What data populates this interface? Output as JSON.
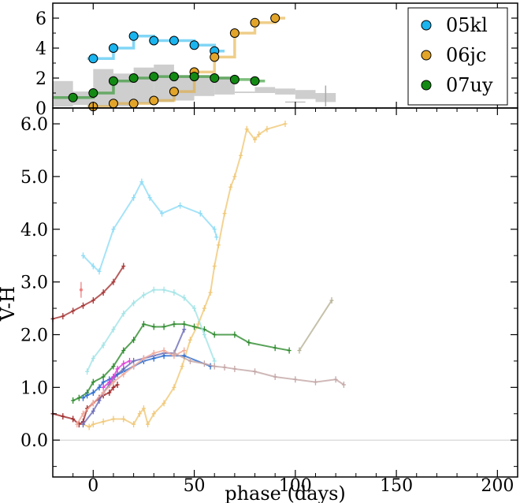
{
  "chart_data": [
    {
      "panel": "top",
      "type": "line",
      "title": "",
      "xlabel": "",
      "ylabel": "",
      "xlim": [
        -20,
        210
      ],
      "ylim": [
        0,
        7
      ],
      "yticks": [
        0,
        2,
        4,
        6
      ],
      "ytick_labels": [
        "0",
        "2",
        "4",
        "6"
      ],
      "legend": {
        "placement": "top-right",
        "entries": [
          {
            "label": "05kl",
            "color": "#1ab4ef"
          },
          {
            "label": "06jc",
            "color": "#e2a52a"
          },
          {
            "label": "07uy",
            "color": "#138a13"
          }
        ]
      },
      "band": {
        "name": "range",
        "color": "#bdbdbd",
        "x": [
          -15,
          -5,
          5,
          15,
          25,
          35,
          45,
          55,
          65,
          75,
          85,
          95,
          105,
          115
        ],
        "low": [
          0.1,
          0.2,
          0.1,
          0.1,
          0.3,
          0.4,
          0.5,
          0.8,
          0.9,
          1.0,
          1.0,
          0.9,
          0.6,
          0.4
        ],
        "high": [
          1.8,
          1.1,
          2.6,
          2.3,
          2.7,
          2.9,
          2.2,
          2.2,
          2.1,
          1.1,
          1.4,
          1.3,
          1.2,
          1.0
        ]
      },
      "series": [
        {
          "name": "05kl",
          "color": "#1ab4ef",
          "step_x": [
            -3,
            0,
            10,
            20,
            30,
            40,
            50,
            60,
            65
          ],
          "step_y": [
            3.3,
            3.3,
            4.0,
            4.8,
            4.5,
            4.5,
            4.2,
            3.8,
            3.8
          ],
          "marker_x": [
            0,
            10,
            20,
            30,
            40,
            50,
            60
          ],
          "marker_y": [
            3.3,
            4.0,
            4.8,
            4.5,
            4.5,
            4.2,
            3.8
          ]
        },
        {
          "name": "06jc",
          "color": "#e2a52a",
          "step_x": [
            -3,
            0,
            10,
            20,
            30,
            40,
            50,
            60,
            70,
            80,
            90,
            95
          ],
          "step_y": [
            0.1,
            0.1,
            0.3,
            0.3,
            0.5,
            1.1,
            2.4,
            3.4,
            5.0,
            5.7,
            6.0,
            6.0
          ],
          "marker_x": [
            0,
            10,
            20,
            30,
            40,
            50,
            60,
            70,
            80,
            90
          ],
          "marker_y": [
            0.1,
            0.3,
            0.3,
            0.5,
            1.1,
            2.4,
            3.4,
            5.0,
            5.7,
            6.0
          ]
        },
        {
          "name": "07uy",
          "color": "#138a13",
          "step_x": [
            -20,
            -10,
            0,
            10,
            20,
            30,
            40,
            50,
            60,
            70,
            80,
            85
          ],
          "step_y": [
            0.7,
            0.7,
            1.0,
            1.8,
            2.0,
            2.1,
            2.1,
            2.1,
            2.0,
            1.9,
            1.8,
            1.8
          ],
          "marker_x": [
            -10,
            0,
            10,
            20,
            30,
            40,
            50,
            60,
            70,
            80
          ],
          "marker_y": [
            0.7,
            1.0,
            1.8,
            2.0,
            2.1,
            2.1,
            2.1,
            2.0,
            1.9,
            1.8
          ]
        }
      ]
    },
    {
      "panel": "bottom",
      "type": "line",
      "title": "",
      "xlabel": "phase (days)",
      "ylabel": "V-H",
      "xlim": [
        -20,
        210
      ],
      "ylim": [
        -0.7,
        6.3
      ],
      "xticks": [
        0,
        50,
        100,
        150,
        200
      ],
      "xtick_labels": [
        "0",
        "50",
        "100",
        "150",
        "200"
      ],
      "yticks": [
        0,
        1,
        2,
        3,
        4,
        5,
        6
      ],
      "ytick_labels": [
        "0.0",
        "1.0",
        "2.0",
        "3.0",
        "4.0",
        "5.0",
        "6.0"
      ],
      "zero_line": true,
      "series": [
        {
          "name": "05kl",
          "color": "#8edcf6",
          "x": [
            -5,
            0,
            3,
            10,
            20,
            24,
            28,
            34,
            43,
            53,
            60,
            61
          ],
          "y": [
            3.5,
            3.3,
            3.2,
            4.0,
            4.6,
            4.9,
            4.6,
            4.3,
            4.45,
            4.3,
            4.0,
            3.85
          ]
        },
        {
          "name": "06jc",
          "color": "#f0c878",
          "x": [
            -5,
            -2,
            0,
            5,
            10,
            15,
            20,
            23,
            25,
            27,
            30,
            35,
            40,
            44,
            48,
            52,
            55,
            58,
            60,
            62,
            65,
            68,
            70,
            73,
            76,
            80,
            82,
            86,
            95
          ],
          "y": [
            0.3,
            0.25,
            0.3,
            0.35,
            0.4,
            0.4,
            0.3,
            0.5,
            0.6,
            0.3,
            0.5,
            0.7,
            1.0,
            1.4,
            1.9,
            2.2,
            2.5,
            2.8,
            3.3,
            3.7,
            4.3,
            4.8,
            5.0,
            5.4,
            5.9,
            5.7,
            5.8,
            5.9,
            6.0
          ]
        },
        {
          "name": "07uy",
          "color": "#2e8b2e",
          "x": [
            -10,
            -7,
            -3,
            0,
            5,
            10,
            15,
            20,
            25,
            30,
            35,
            40,
            45,
            50,
            55,
            60,
            70,
            77,
            90,
            97
          ],
          "y": [
            0.75,
            0.8,
            0.9,
            1.1,
            1.2,
            1.4,
            1.7,
            1.9,
            2.2,
            2.15,
            2.15,
            2.2,
            2.2,
            2.15,
            2.1,
            2.0,
            2.0,
            1.85,
            1.75,
            1.7
          ]
        },
        {
          "name": "teal",
          "color": "#a3e4e6",
          "x": [
            -3,
            0,
            5,
            10,
            15,
            20,
            25,
            30,
            35,
            40,
            45,
            50,
            55,
            60
          ],
          "y": [
            1.3,
            1.55,
            1.8,
            2.1,
            2.4,
            2.6,
            2.75,
            2.85,
            2.85,
            2.8,
            2.7,
            2.5,
            2.0,
            1.5
          ]
        },
        {
          "name": "darkred",
          "color": "#a53434",
          "x": [
            -20,
            -15,
            -10,
            -5,
            0,
            5,
            10,
            15
          ],
          "y": [
            2.3,
            2.35,
            2.45,
            2.55,
            2.65,
            2.8,
            3.0,
            3.3
          ]
        },
        {
          "name": "brown",
          "color": "#a02828",
          "x": [
            -20,
            -15,
            -10,
            -7,
            -5,
            -3,
            0,
            3,
            5,
            8,
            10,
            12
          ],
          "y": [
            0.5,
            0.45,
            0.4,
            0.3,
            0.35,
            0.6,
            0.7,
            0.8,
            0.85,
            0.9,
            1.0,
            1.05
          ]
        },
        {
          "name": "slate",
          "color": "#6b6bb8",
          "x": [
            -5,
            0,
            3,
            5,
            8,
            10,
            12,
            15,
            20,
            25,
            30,
            35,
            40,
            45
          ],
          "y": [
            0.3,
            0.55,
            0.75,
            0.9,
            1.05,
            1.15,
            1.25,
            1.35,
            1.5,
            1.55,
            1.6,
            1.65,
            1.65,
            2.1
          ]
        },
        {
          "name": "blue",
          "color": "#2b6ccf",
          "x": [
            -5,
            -3,
            0,
            3,
            5,
            8,
            10,
            15,
            20,
            25,
            30,
            35,
            45,
            58
          ],
          "y": [
            0.8,
            0.85,
            0.9,
            1.0,
            1.1,
            1.15,
            1.2,
            1.3,
            1.4,
            1.5,
            1.55,
            1.6,
            1.6,
            1.4
          ]
        },
        {
          "name": "magenta",
          "color": "#e040d8",
          "x": [
            5,
            8,
            10,
            12,
            15,
            18
          ],
          "y": [
            1.0,
            1.1,
            1.2,
            1.35,
            1.45,
            1.5
          ]
        },
        {
          "name": "salmon",
          "color": "#f0a898",
          "x": [
            -8,
            -5,
            0,
            5,
            10,
            15,
            20,
            25,
            30,
            35,
            40,
            45
          ],
          "y": [
            0.3,
            0.5,
            0.7,
            0.9,
            1.1,
            1.25,
            1.4,
            1.55,
            1.65,
            1.7,
            1.6,
            1.7
          ]
        },
        {
          "name": "mauve",
          "color": "#c4a6a6",
          "x": [
            40,
            48,
            55,
            60,
            65,
            70,
            80,
            90,
            100,
            110,
            120,
            124
          ],
          "y": [
            1.65,
            1.5,
            1.45,
            1.4,
            1.38,
            1.35,
            1.3,
            1.2,
            1.15,
            1.1,
            1.15,
            1.05
          ]
        },
        {
          "name": "olive",
          "color": "#b6b296",
          "x": [
            102,
            118
          ],
          "y": [
            1.7,
            2.65
          ]
        }
      ],
      "single_points": [
        {
          "name": "pink-point",
          "color": "#f08080",
          "x": -6,
          "y": 2.85
        }
      ]
    }
  ]
}
